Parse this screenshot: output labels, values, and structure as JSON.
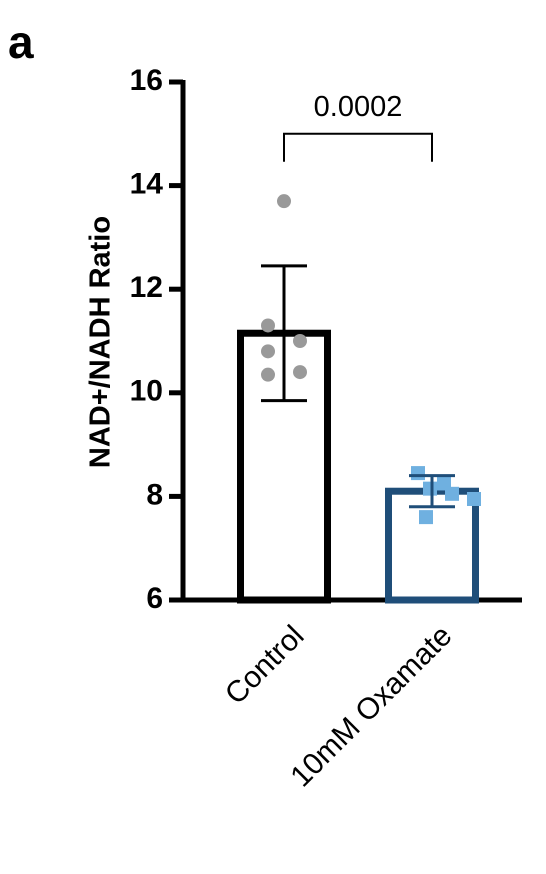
{
  "panel_label": "a",
  "chart_data": {
    "type": "bar",
    "title": "",
    "xlabel": "",
    "ylabel": "NAD+/NADH Ratio",
    "ylim": [
      6,
      16
    ],
    "yticks": [
      6,
      8,
      10,
      12,
      14,
      16
    ],
    "ytick_labels": [
      "6",
      "8",
      "10",
      "12",
      "14",
      "16"
    ],
    "categories": [
      "Control",
      "10mM Oxamate"
    ],
    "values": [
      11.15,
      8.1
    ],
    "error": [
      1.3,
      0.3
    ],
    "points": [
      [
        13.7,
        11.3,
        11.0,
        10.8,
        10.4,
        10.35
      ],
      [
        8.45,
        8.25,
        8.15,
        8.05,
        7.95,
        7.6
      ]
    ],
    "bar_colors": [
      "#000000",
      "#1f4e79"
    ],
    "point_colors": [
      "#999999",
      "#6fb0e0"
    ],
    "point_shapes": [
      "circle",
      "square"
    ],
    "significance": {
      "label": "0.0002",
      "between": [
        0,
        1
      ],
      "y": 15.0
    },
    "grid": false,
    "legend": "none"
  }
}
